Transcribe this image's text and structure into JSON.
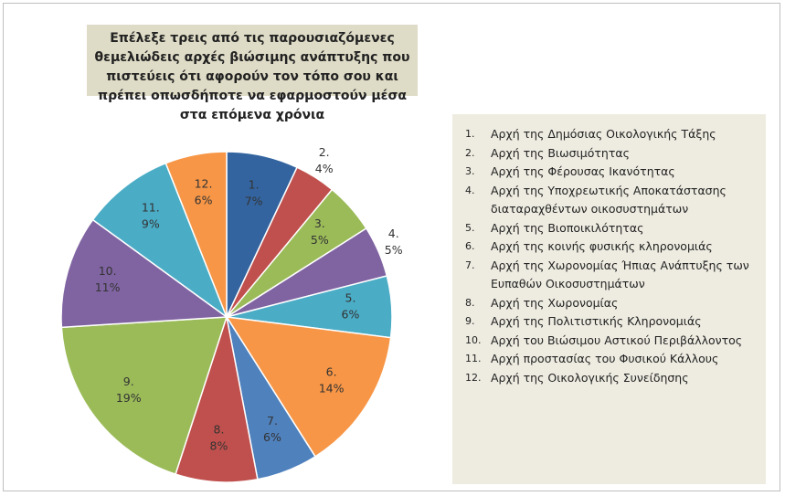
{
  "chart_data": {
    "type": "pie",
    "title": "Επέλεξε τρεις από τις παρουσιαζόμενες θεμελιώδεις αρχές βιώσιμης ανάπτυξης που πιστεύεις ότι αφορούν τον τόπο σου και πρέπει οπωσδήποτε να εφαρμοστούν μέσα στα επόμενα χρόνια",
    "categories": [
      "1.",
      "2.",
      "3.",
      "4.",
      "5.",
      "6.",
      "7.",
      "8.",
      "9.",
      "10.",
      "11.",
      "12."
    ],
    "values": [
      7,
      4,
      5,
      5,
      6,
      14,
      6,
      8,
      19,
      11,
      9,
      6
    ],
    "value_labels": [
      "7%",
      "4%",
      "5%",
      "5%",
      "6%",
      "14%",
      "6%",
      "8%",
      "19%",
      "11%",
      "9%",
      "6%"
    ],
    "colors": [
      "#33649f",
      "#c0504d",
      "#9bbb59",
      "#8064a2",
      "#4bacc6",
      "#f79646",
      "#4f81bd",
      "#c0504d",
      "#9bbb59",
      "#8064a2",
      "#4bacc6",
      "#f79646"
    ],
    "legend": [
      "Αρχή της Δημόσιας Οικολογικής Τάξης",
      "Αρχή της Βιωσιμότητας",
      "Αρχή της Φέρουσας Ικανότητας",
      "Αρχή της Υποχρεωτικής Αποκατάστασης διαταραχθέντων οικοσυστημάτων",
      "Αρχή της Βιοποικιλότητας",
      "Αρχή της κοινής φυσικής κληρονομιάς",
      "Αρχή της Χωρονομίας Ήπιας Ανάπτυξης των Ευπαθών Οικοσυστημάτων",
      "Αρχή της Χωρονομίας",
      "Αρχή της Πολιτιστικής Κληρονομιάς",
      "Αρχή του Βιώσιμου Αστικού Περιβάλλοντος",
      "Αρχή προστασίας του Φυσικού Κάλλους",
      "Αρχή της Οικολογικής Συνείδησης"
    ]
  }
}
